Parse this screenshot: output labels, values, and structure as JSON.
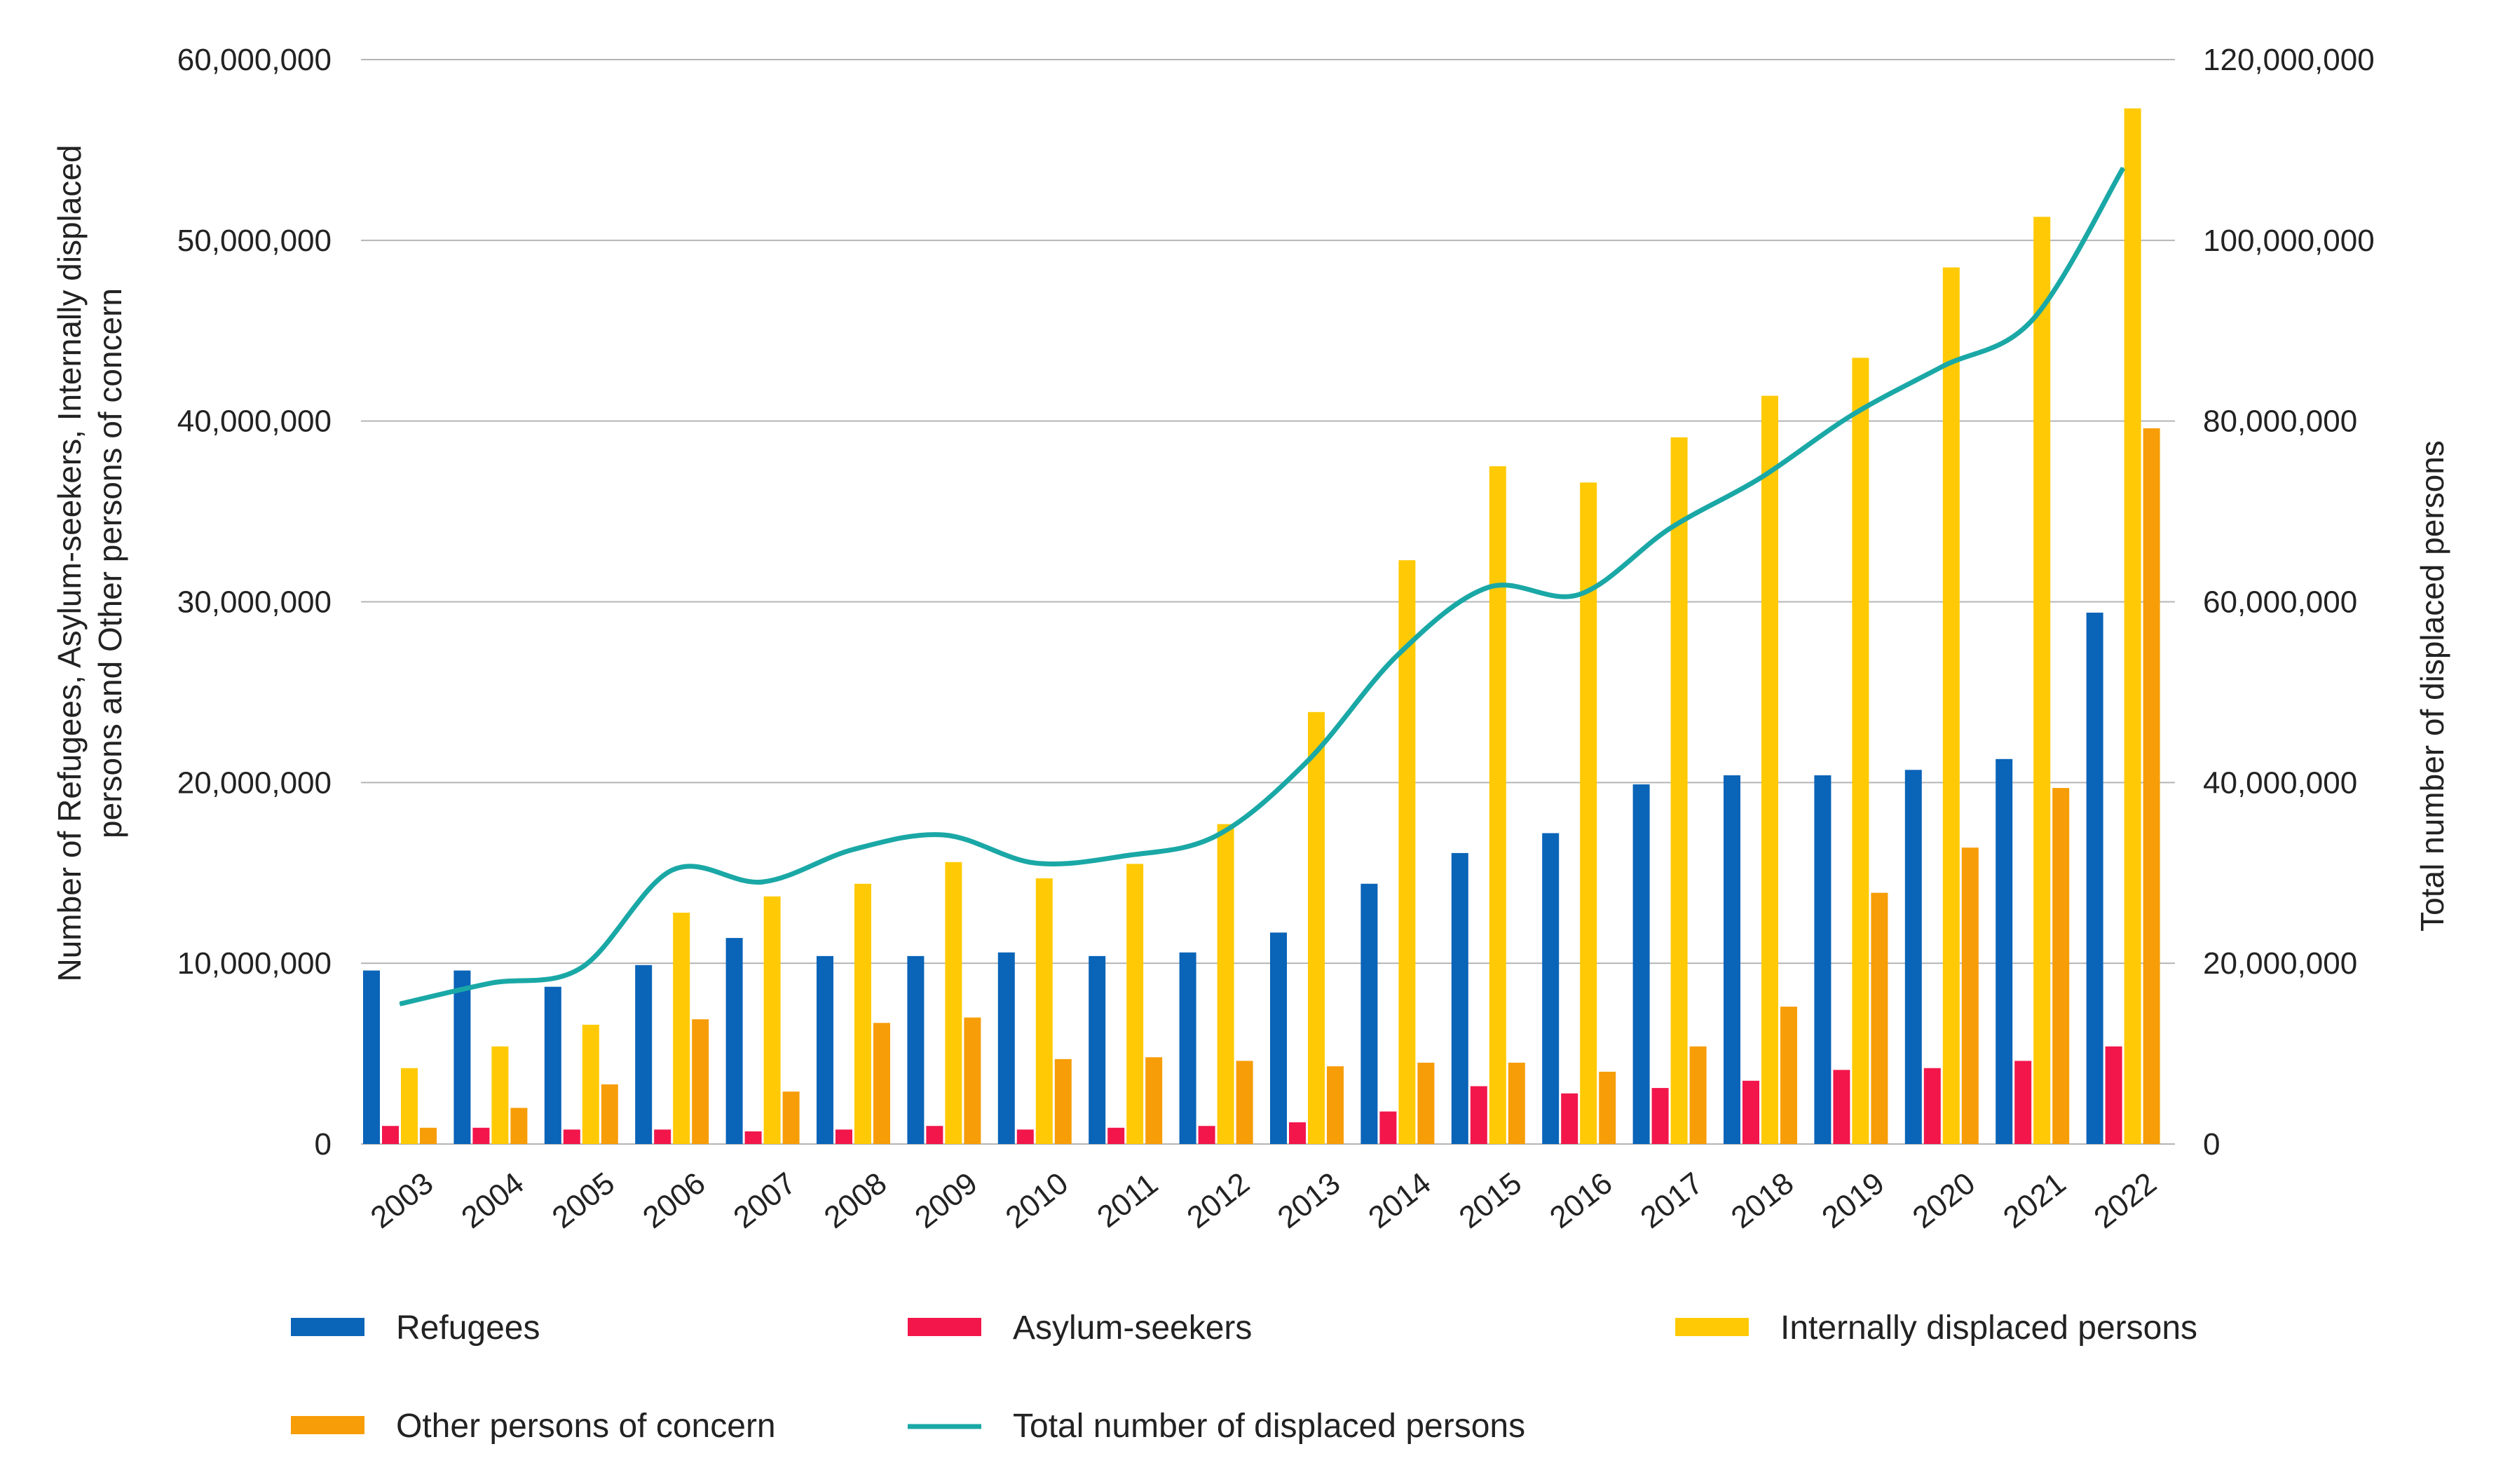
{
  "chart_data": {
    "type": "bar",
    "categories": [
      "2003",
      "2004",
      "2005",
      "2006",
      "2007",
      "2008",
      "2009",
      "2010",
      "2011",
      "2012",
      "2013",
      "2014",
      "2015",
      "2016",
      "2017",
      "2018",
      "2019",
      "2020",
      "2021",
      "2022"
    ],
    "series": [
      {
        "name": "Refugees",
        "color": "#0a64b8",
        "axis": "left",
        "values": [
          9600000,
          9600000,
          8700000,
          9900000,
          11400000,
          10400000,
          10400000,
          10600000,
          10400000,
          10600000,
          11700000,
          14400000,
          16100000,
          17200000,
          19900000,
          20400000,
          20400000,
          20700000,
          21300000,
          29400000
        ]
      },
      {
        "name": "Asylum-seekers",
        "color": "#f2164b",
        "axis": "left",
        "values": [
          1000000,
          900000,
          800000,
          800000,
          700000,
          800000,
          1000000,
          800000,
          900000,
          1000000,
          1200000,
          1800000,
          3200000,
          2800000,
          3100000,
          3500000,
          4100000,
          4200000,
          4600000,
          5400000
        ]
      },
      {
        "name": "Internally displaced persons",
        "color": "#ffca05",
        "axis": "left",
        "values": [
          4200000,
          5400000,
          6600000,
          12800000,
          13700000,
          14400000,
          15600000,
          14700000,
          15500000,
          17700000,
          23900000,
          32300000,
          37500000,
          36600000,
          39100000,
          41400000,
          43500000,
          48500000,
          51300000,
          57300000
        ]
      },
      {
        "name": "Other persons of concern",
        "color": "#f79d08",
        "axis": "left",
        "values": [
          900000,
          2000000,
          3300000,
          6900000,
          2900000,
          6700000,
          7000000,
          4700000,
          4800000,
          4600000,
          4300000,
          4500000,
          4500000,
          4000000,
          5400000,
          7600000,
          13900000,
          16400000,
          19700000,
          39600000
        ]
      },
      {
        "name": "Total number of displaced persons",
        "color": "#1aa8a6",
        "axis": "right",
        "type": "line",
        "values": [
          15500000,
          17800000,
          19500000,
          30300000,
          29000000,
          32600000,
          34200000,
          31100000,
          31900000,
          34100000,
          42300000,
          54100000,
          61600000,
          60800000,
          68100000,
          73700000,
          80600000,
          86000000,
          91200000,
          108000000
        ]
      }
    ],
    "ylabel_left": "Number of Refugees, Asylum-seekers, Internally displaced persons and Other persons of concern",
    "ylabel_right": "Total number of displaced persons",
    "ylim_left": [
      0,
      60000000
    ],
    "ylim_right": [
      0,
      120000000
    ],
    "yticks_left": [
      "0",
      "10,000,000",
      "20,000,000",
      "30,000,000",
      "40,000,000",
      "50,000,000",
      "60,000,000"
    ],
    "yticks_right": [
      "0",
      "20,000,000",
      "40,000,000",
      "60,000,000",
      "80,000,000",
      "100,000,000",
      "120,000,000"
    ],
    "grid": true,
    "legend_placement": "bottom"
  }
}
